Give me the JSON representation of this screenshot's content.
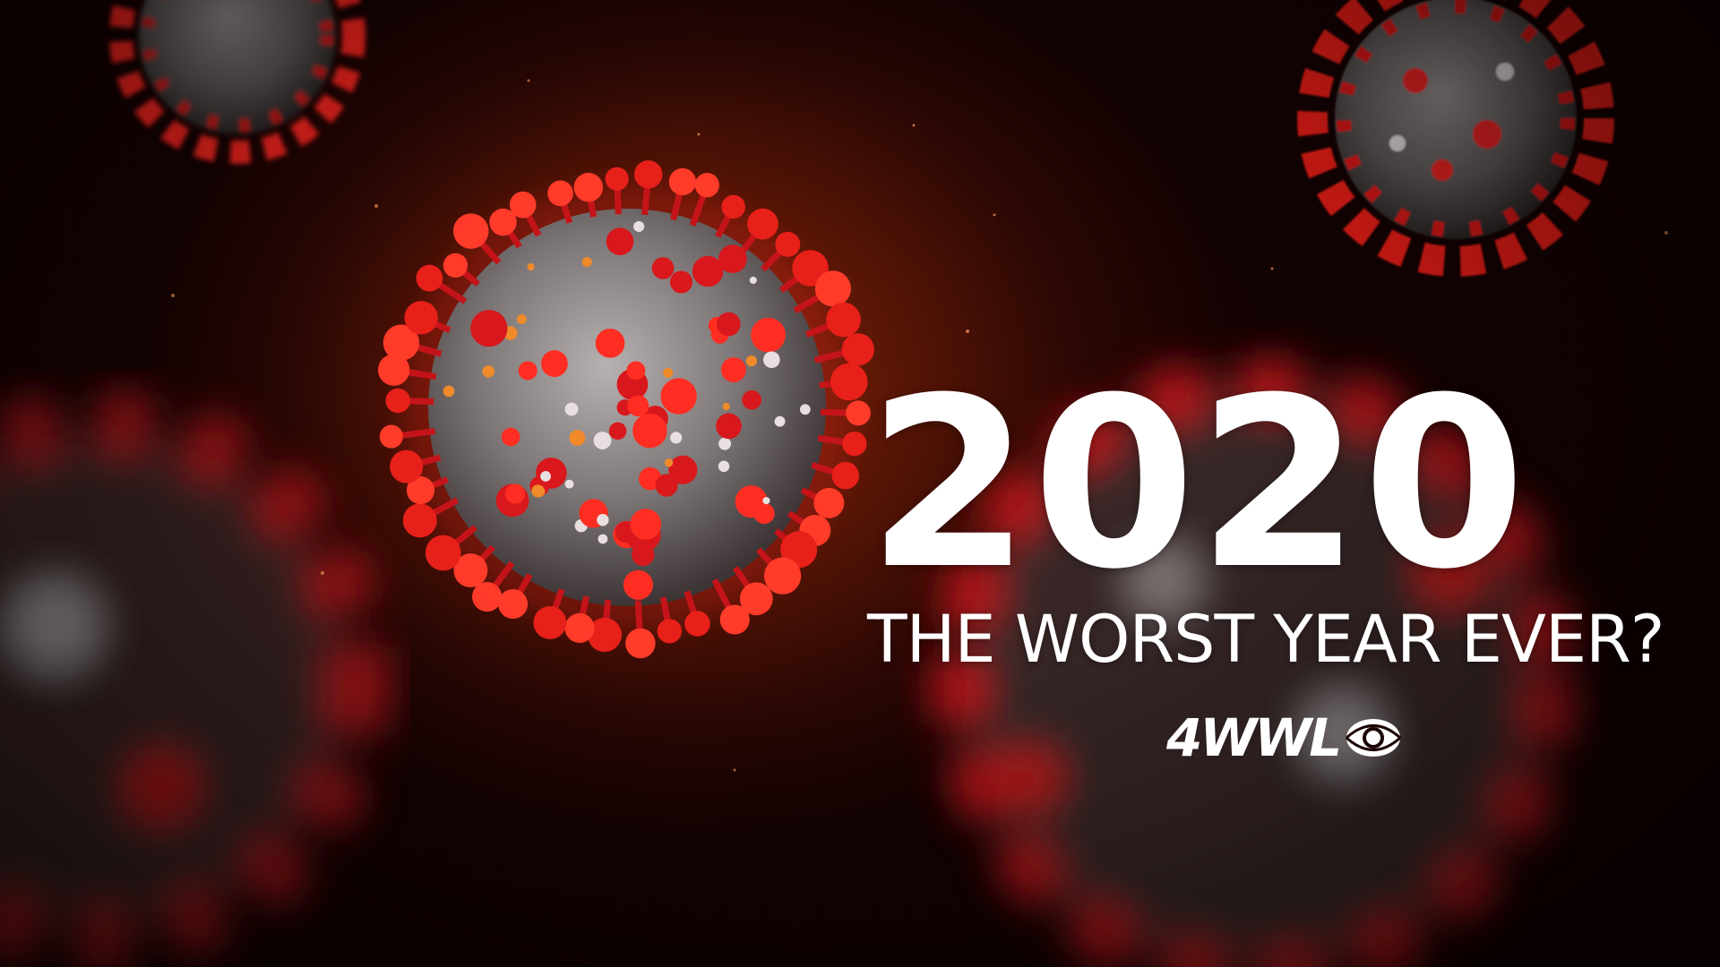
{
  "headline": {
    "year": "2020",
    "subtitle": "THE WORST YEAR EVER?"
  },
  "logo": {
    "text": "4WWL",
    "icon": "cbs-eye-icon"
  },
  "colors": {
    "spike_red": "#e8201a",
    "virus_gray": "#7d7676",
    "text": "#ffffff"
  }
}
